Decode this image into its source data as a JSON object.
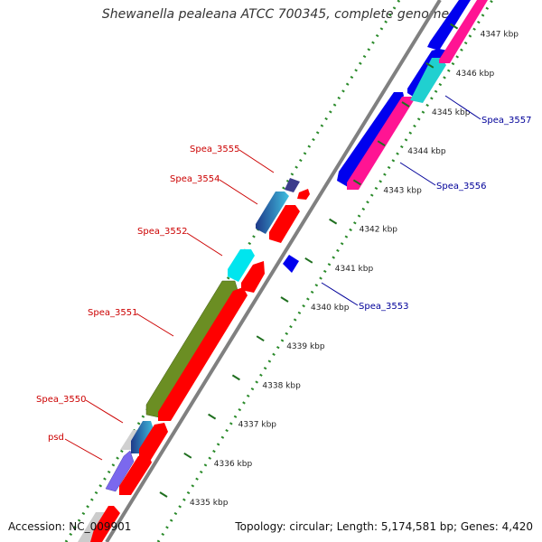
{
  "header": {
    "title": "Shewanella pealeana ATCC 700345, complete genome"
  },
  "footer": {
    "accession": "Accession: NC_009901",
    "topology": "Topology: circular; Length: 5,174,581 bp; Genes: 4,420"
  },
  "diagram": {
    "scale_unit": "kbp",
    "ticks": [
      {
        "kbp": 4335,
        "label": "4335 kbp"
      },
      {
        "kbp": 4336,
        "label": "4336 kbp"
      },
      {
        "kbp": 4337,
        "label": "4337 kbp"
      },
      {
        "kbp": 4338,
        "label": "4338 kbp"
      },
      {
        "kbp": 4339,
        "label": "4339 kbp"
      },
      {
        "kbp": 4340,
        "label": "4340 kbp"
      },
      {
        "kbp": 4341,
        "label": "4341 kbp"
      },
      {
        "kbp": 4342,
        "label": "4342 kbp"
      },
      {
        "kbp": 4343,
        "label": "4343 kbp"
      },
      {
        "kbp": 4344,
        "label": "4344 kbp"
      },
      {
        "kbp": 4345,
        "label": "4345 kbp"
      },
      {
        "kbp": 4346,
        "label": "4346 kbp"
      },
      {
        "kbp": 4347,
        "label": "4347 kbp"
      }
    ],
    "colors": {
      "backbone": "#888888",
      "red": "#ff0000",
      "blue": "#0000ee",
      "magenta": "#ff1493",
      "cyan": "#00e0e0",
      "olive": "#6b8e23",
      "navy_purple": "#3c3c8c",
      "lavender": "#7b68ee",
      "grey": "#cccccc",
      "tick_green": "#2a7a2a",
      "left_label": "#cc0000",
      "right_label": "#000099"
    },
    "left_labels": [
      {
        "text": "Spea_3555"
      },
      {
        "text": "Spea_3554"
      },
      {
        "text": "Spea_3552"
      },
      {
        "text": "Spea_3551"
      },
      {
        "text": "Spea_3550"
      },
      {
        "text": "psd"
      }
    ],
    "right_labels": [
      {
        "text": "Spea_3557"
      },
      {
        "text": "Spea_3556"
      },
      {
        "text": "Spea_3553"
      }
    ]
  }
}
